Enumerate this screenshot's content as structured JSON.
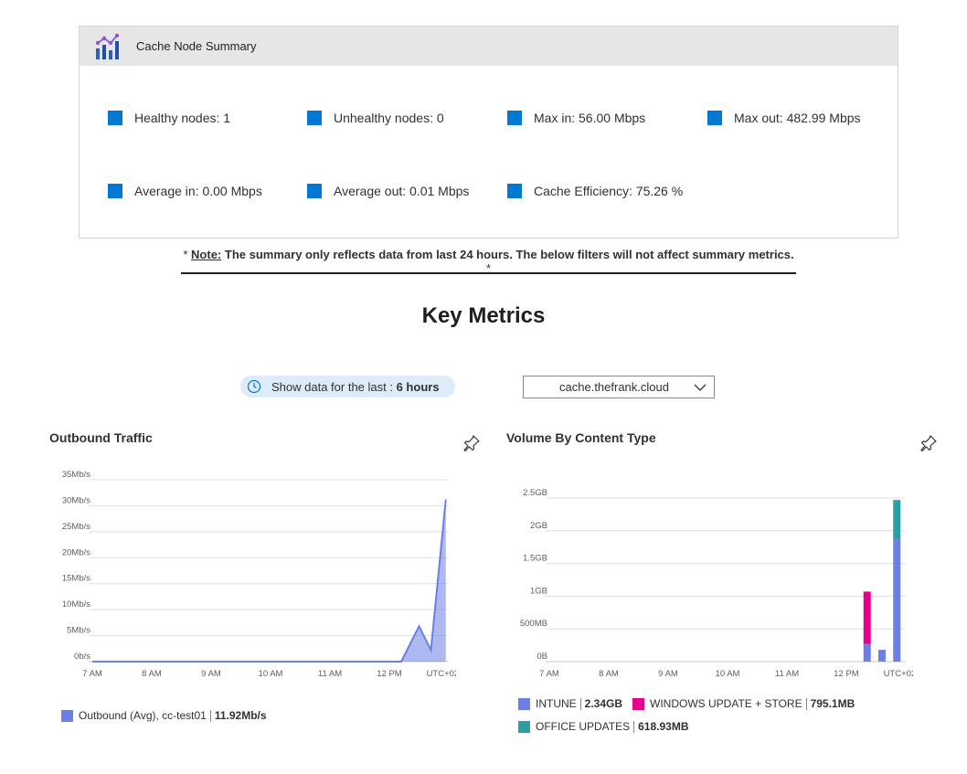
{
  "summary": {
    "title": "Cache Node Summary",
    "metrics": [
      "Healthy nodes: 1",
      "Unhealthy nodes: 0",
      "Max in: 56.00 Mbps",
      "Max out: 482.99 Mbps",
      "Average in: 0.00 Mbps",
      "Average out: 0.01 Mbps",
      "Cache Efficiency: 75.26 %"
    ],
    "metric_color": "#0078d4"
  },
  "note": {
    "prefix": "*",
    "label": "Note:",
    "text": "The summary only reflects data from last 24 hours. The below filters will not affect summary metrics.",
    "suffix": "*"
  },
  "key_metrics_title": "Key Metrics",
  "time_filter": {
    "label": "Show data for the last :",
    "value": "6 hours",
    "icon": "clock-icon"
  },
  "node_select": {
    "value": "cache.thefrank.cloud",
    "icon": "chevron-down-icon"
  },
  "chart_data": [
    {
      "type": "area",
      "title": "Outbound Traffic",
      "y_ticks": [
        "35Mb/s",
        "30Mb/s",
        "25Mb/s",
        "20Mb/s",
        "15Mb/s",
        "10Mb/s",
        "5Mb/s",
        "0b/s"
      ],
      "ylim": [
        0,
        35
      ],
      "x_ticks": [
        "7 AM",
        "8 AM",
        "9 AM",
        "10 AM",
        "11 AM",
        "12 PM",
        "UTC+02:00"
      ],
      "x": [
        0,
        1,
        2,
        3,
        4,
        5,
        5.2,
        5.5,
        5.7,
        5.95
      ],
      "series": [
        {
          "name": "Outbound (Avg), cc-test01",
          "values": [
            0,
            0,
            0,
            0,
            0,
            0,
            0,
            6.8,
            2.2,
            31.2
          ],
          "color": "#6b7fe6"
        }
      ],
      "legend": [
        {
          "name": "Outbound (Avg), cc-test01",
          "value": "11.92Mb/s",
          "color": "#6b7fe6"
        }
      ],
      "grid": true
    },
    {
      "type": "bar",
      "title": "Volume By Content Type",
      "y_ticks": [
        "2.5GB",
        "2GB",
        "1.5GB",
        "1GB",
        "500MB",
        "0B"
      ],
      "ylim": [
        0,
        2.5
      ],
      "x_ticks": [
        "7 AM",
        "8 AM",
        "9 AM",
        "10 AM",
        "11 AM",
        "12 PM",
        "UTC+02:00"
      ],
      "x": [
        5.35,
        5.6,
        5.85
      ],
      "series": [
        {
          "name": "INTUNE",
          "values": [
            0.27,
            0.18,
            1.87
          ],
          "color": "#6b7fe6"
        },
        {
          "name": "WINDOWS UPDATE + STORE",
          "values": [
            0.8,
            0,
            0
          ],
          "color": "#e3008c"
        },
        {
          "name": "OFFICE UPDATES",
          "values": [
            0,
            0,
            0.6
          ],
          "color": "#2aa0a4"
        }
      ],
      "legend": [
        {
          "name": "INTUNE",
          "value": "2.34GB",
          "color": "#6b7fe6"
        },
        {
          "name": "WINDOWS UPDATE + STORE",
          "value": "795.1MB",
          "color": "#e3008c"
        },
        {
          "name": "OFFICE UPDATES",
          "value": "618.93MB",
          "color": "#2aa0a4"
        }
      ],
      "grid": true
    }
  ]
}
